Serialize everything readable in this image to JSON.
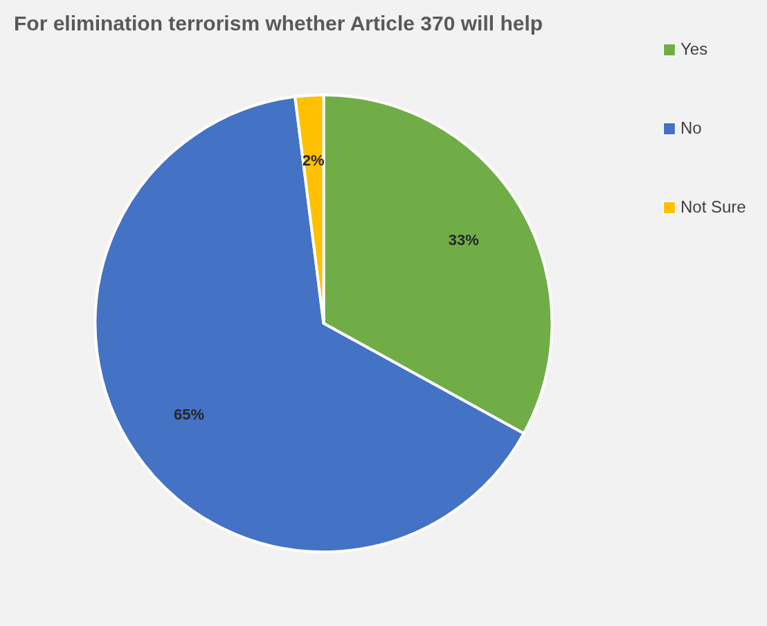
{
  "chart_data": {
    "type": "pie",
    "title": "For elimination terrorism whether Article 370 will help",
    "categories": [
      "Yes",
      "No",
      "Not Sure"
    ],
    "values": [
      33,
      65,
      2
    ],
    "value_labels": [
      "33%",
      "65%",
      "2%"
    ],
    "colors": [
      "#70ad47",
      "#4472c4",
      "#ffc000"
    ],
    "legend": "right"
  }
}
